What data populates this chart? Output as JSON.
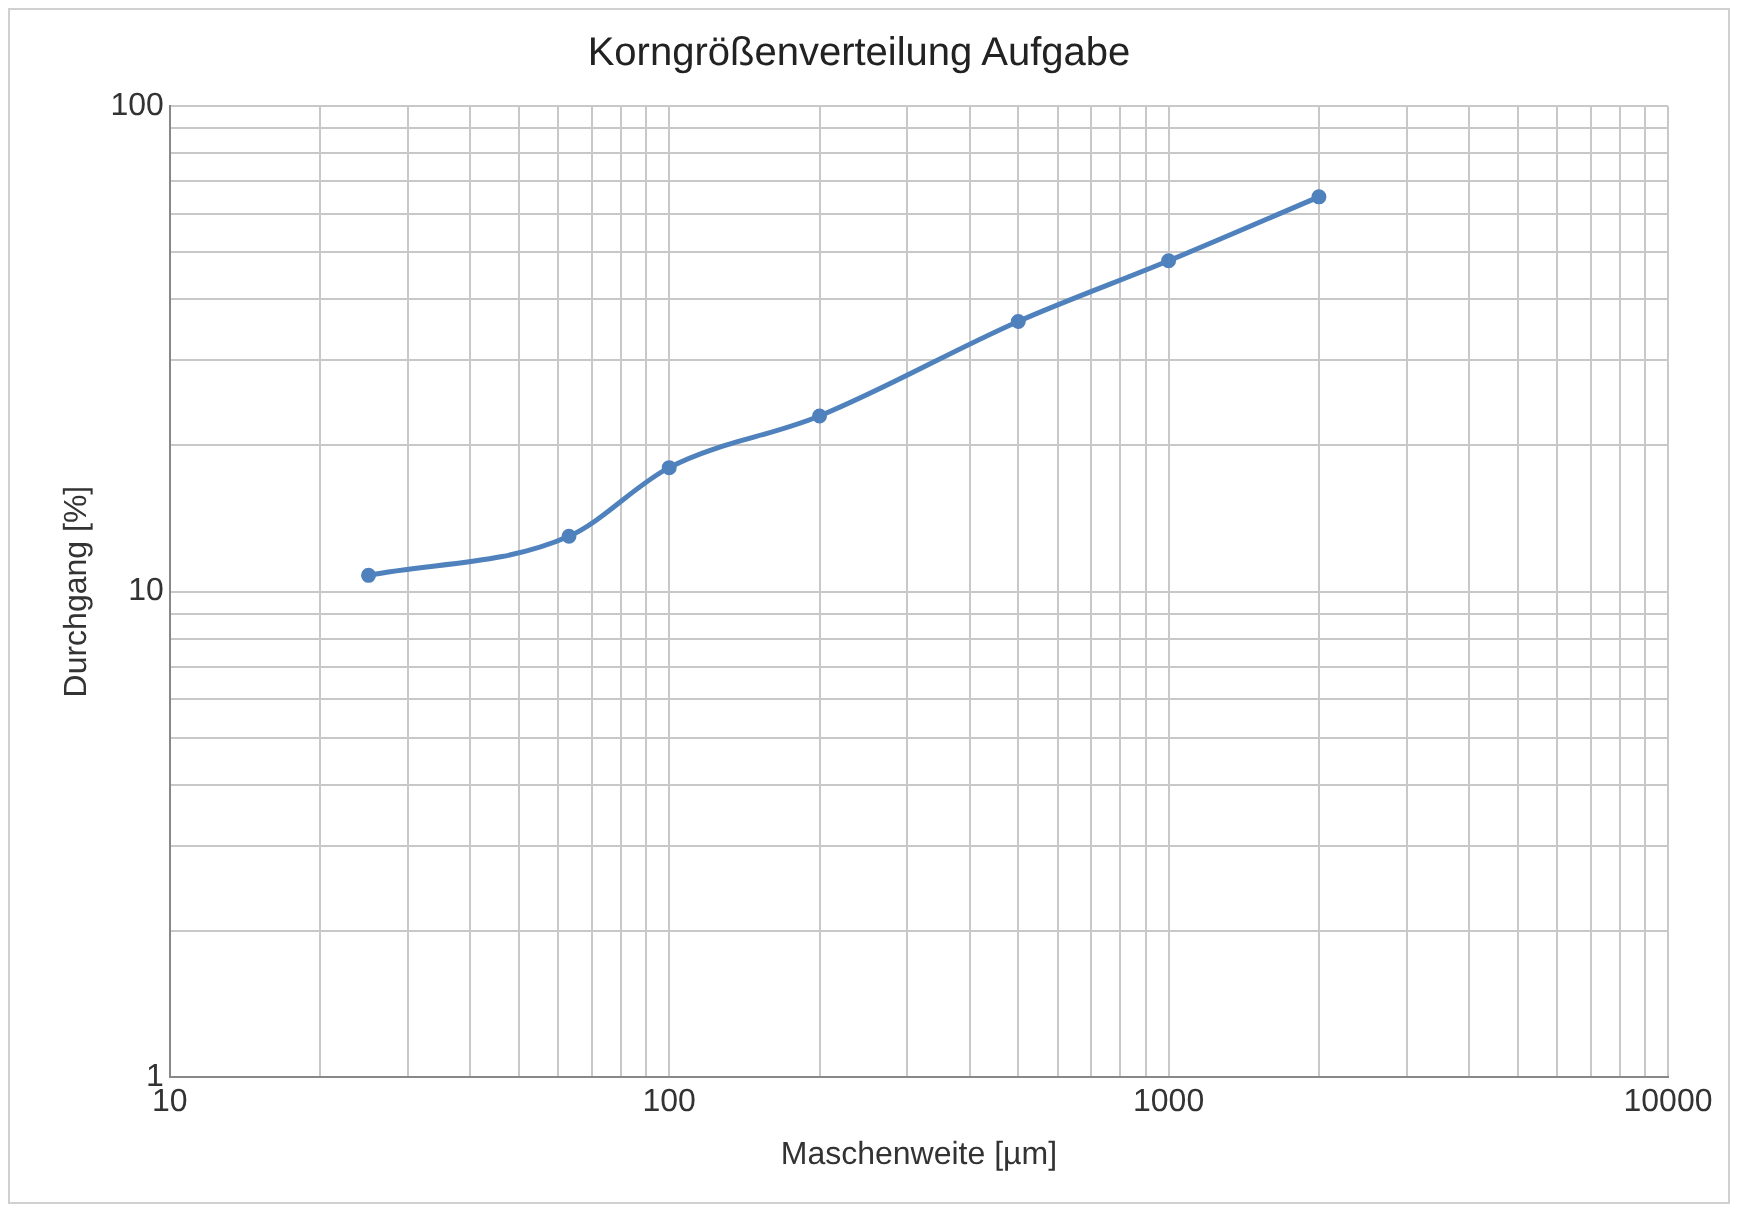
{
  "chart_data": {
    "type": "line",
    "title": "Korngrößenverteilung Aufgabe",
    "xlabel": "Maschenweite [µm]",
    "ylabel": "Durchgang [%]",
    "x": [
      25,
      63,
      100,
      200,
      500,
      1000,
      2000
    ],
    "series": [
      {
        "color": "#4f81bd",
        "values": [
          10.8,
          13,
          18,
          23,
          36,
          48,
          65
        ]
      }
    ],
    "log": "xy",
    "xlim": [
      10,
      10000
    ],
    "ylim": [
      1,
      100
    ],
    "xticks": [
      10,
      {
        "value": 20,
        "label": null
      },
      {
        "value": 30,
        "label": null
      },
      {
        "value": 40,
        "label": null
      },
      {
        "value": 50,
        "label": null
      },
      {
        "value": 60,
        "label": null
      },
      {
        "value": 70,
        "label": null
      },
      {
        "value": 80,
        "label": null
      },
      {
        "value": 90,
        "label": null
      },
      100,
      {
        "value": 200,
        "label": null
      },
      {
        "value": 300,
        "label": null
      },
      {
        "value": 400,
        "label": null
      },
      {
        "value": 500,
        "label": null
      },
      {
        "value": 600,
        "label": null
      },
      {
        "value": 700,
        "label": null
      },
      {
        "value": 800,
        "label": null
      },
      {
        "value": 900,
        "label": null
      },
      1000,
      {
        "value": 2000,
        "label": null
      },
      {
        "value": 3000,
        "label": null
      },
      {
        "value": 4000,
        "label": null
      },
      {
        "value": 5000,
        "label": null
      },
      {
        "value": 6000,
        "label": null
      },
      {
        "value": 7000,
        "label": null
      },
      {
        "value": 8000,
        "label": null
      },
      {
        "value": 9000,
        "label": null
      },
      10000
    ],
    "yticks": [
      1,
      {
        "value": 2,
        "label": null
      },
      {
        "value": 3,
        "label": null
      },
      {
        "value": 4,
        "label": null
      },
      {
        "value": 5,
        "label": null
      },
      {
        "value": 6,
        "label": null
      },
      {
        "value": 7,
        "label": null
      },
      {
        "value": 8,
        "label": null
      },
      {
        "value": 9,
        "label": null
      },
      10,
      {
        "value": 20,
        "label": null
      },
      {
        "value": 30,
        "label": null
      },
      {
        "value": 40,
        "label": null
      },
      {
        "value": 50,
        "label": null
      },
      {
        "value": 60,
        "label": null
      },
      {
        "value": 70,
        "label": null
      },
      {
        "value": 80,
        "label": null
      },
      {
        "value": 90,
        "label": null
      },
      100
    ],
    "grid": true,
    "legend": false,
    "marker": "circle",
    "line_style": "solid"
  }
}
